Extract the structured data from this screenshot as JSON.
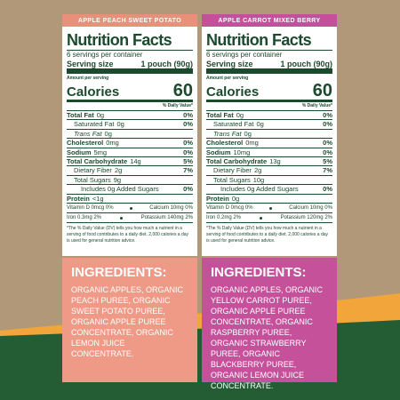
{
  "panels": [
    {
      "name": "APPLE PEACH SWEET POTATO",
      "label": {
        "title": "Nutrition Facts",
        "servings": "6 servings per container",
        "serving_size_label": "Serving size",
        "serving_size": "1 pouch (90g)",
        "amount_per_serving": "Amount per serving",
        "calories_label": "Calories",
        "calories": "60",
        "daily_value_header": "% Daily Value*",
        "rows": [
          {
            "label": "Total Fat",
            "amount": "0g",
            "dv": "0%",
            "sub": [
              {
                "label": "Saturated Fat",
                "amount": "0g",
                "dv": "0%"
              },
              {
                "label": "Trans Fat",
                "amount": "0g"
              }
            ]
          },
          {
            "label": "Cholesterol",
            "amount": "0mg",
            "dv": "0%"
          },
          {
            "label": "Sodium",
            "amount": "5mg",
            "dv": "0%"
          },
          {
            "label": "Total Carbohydrate",
            "amount": "14g",
            "dv": "5%",
            "sub": [
              {
                "label": "Dietary Fiber",
                "amount": "2g",
                "dv": "7%"
              },
              {
                "label": "Total Sugars",
                "amount": "9g",
                "sub": [
                  {
                    "label": "Includes 0g Added Sugars",
                    "dv": "0%"
                  }
                ]
              }
            ]
          },
          {
            "label": "Protein",
            "amount": "<1g"
          }
        ],
        "vitamins": [
          [
            "Vitamin D 0mcg 0%",
            "Calcium 10mg 0%"
          ],
          [
            "Iron 0.3mg 2%",
            "Potassium 140mg 2%"
          ]
        ],
        "footnote": "*The % Daily Value (DV) tells you how much a nutrient in a serving of food contributes to a daily diet. 2,000 calories a day is used for general nutrition advice."
      },
      "ingredients": {
        "title": "INGREDIENTS:",
        "text": "ORGANIC APPLES, ORGANIC PEACH PUREE, ORGANIC SWEET POTATO PUREE, ORGANIC APPLE PUREE CONCENTRATE, ORGANIC LEMON JUICE CONCENTRATE."
      }
    },
    {
      "name": "APPLE CARROT MIXED BERRY",
      "label": {
        "title": "Nutrition Facts",
        "servings": "6 servings per container",
        "serving_size_label": "Serving size",
        "serving_size": "1 pouch (90g)",
        "amount_per_serving": "Amount per serving",
        "calories_label": "Calories",
        "calories": "60",
        "daily_value_header": "% Daily Value*",
        "rows": [
          {
            "label": "Total Fat",
            "amount": "0g",
            "dv": "0%",
            "sub": [
              {
                "label": "Saturated Fat",
                "amount": "0g",
                "dv": "0%"
              },
              {
                "label": "Trans Fat",
                "amount": "0g"
              }
            ]
          },
          {
            "label": "Cholesterol",
            "amount": "0mg",
            "dv": "0%"
          },
          {
            "label": "Sodium",
            "amount": "10mg",
            "dv": "0%"
          },
          {
            "label": "Total Carbohydrate",
            "amount": "13g",
            "dv": "5%",
            "sub": [
              {
                "label": "Dietary Fiber",
                "amount": "2g",
                "dv": "7%"
              },
              {
                "label": "Total Sugars",
                "amount": "10g",
                "sub": [
                  {
                    "label": "Includes 0g Added Sugars",
                    "dv": "0%"
                  }
                ]
              }
            ]
          },
          {
            "label": "Protein",
            "amount": "0g"
          }
        ],
        "vitamins": [
          [
            "Vitamin D 0mcg 0%",
            "Calcium 10mg 0%"
          ],
          [
            "Iron 0.2mg 2%",
            "Potassium 120mg 2%"
          ]
        ],
        "footnote": "*The % Daily Value (DV) tells you how much a nutrient in a serving of food contributes to a daily diet. 2,000 calories a day is used for general nutrition advice."
      },
      "ingredients": {
        "title": "INGREDIENTS:",
        "text": "ORGANIC APPLES, ORGANIC YELLOW CARROT PUREE, ORGANIC APPLE PUREE CONCENTRATE, ORGANIC RASPBERRY PUREE, ORGANIC STRAWBERRY PUREE, ORGANIC BLACKBERRY PUREE, ORGANIC LEMON JUICE CONCENTRATE."
      }
    }
  ]
}
